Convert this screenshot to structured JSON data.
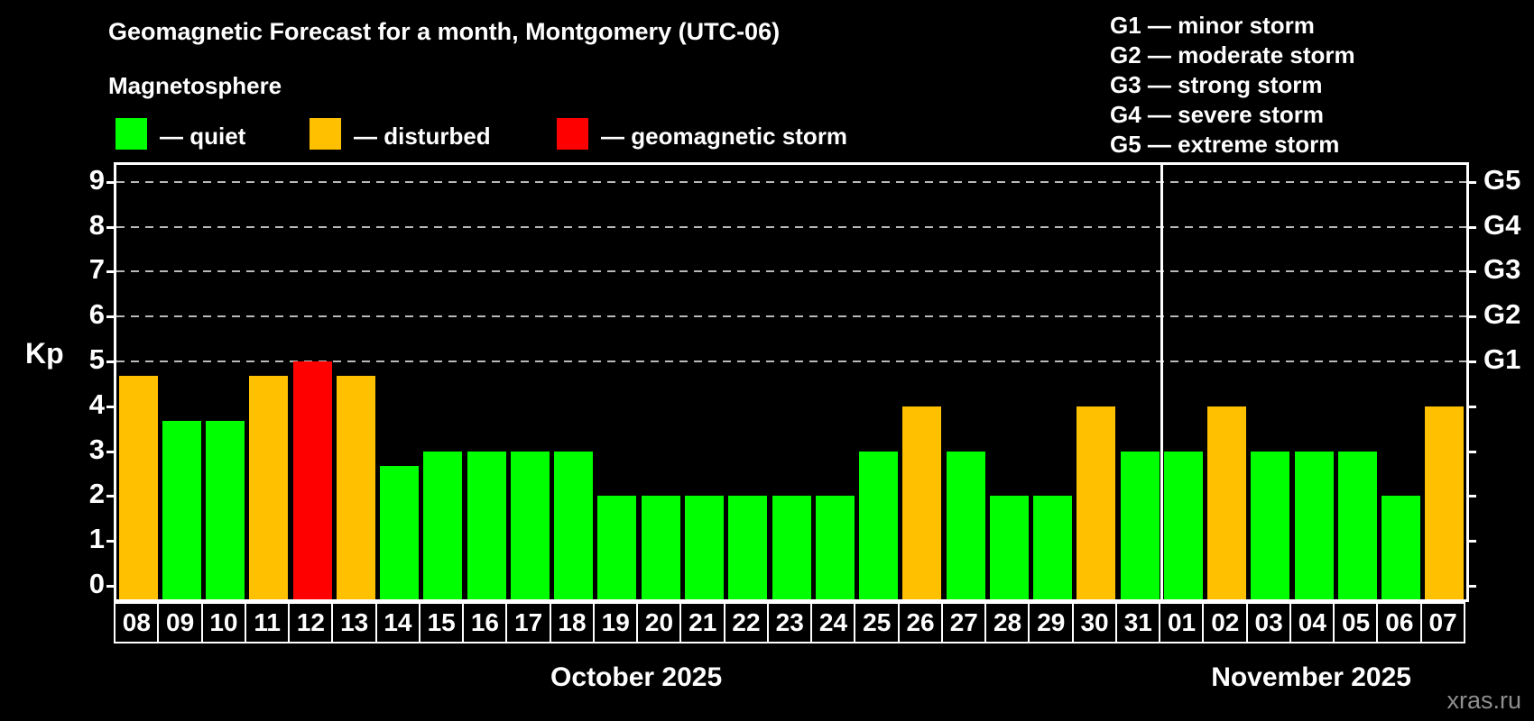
{
  "header": {
    "title": "Geomagnetic Forecast for a month, Montgomery (UTC-06)",
    "subtitle": "Magnetosphere",
    "watermark": "xras.ru"
  },
  "legend": {
    "items": [
      {
        "key": "quiet",
        "label": "— quiet",
        "color": "#00ff00"
      },
      {
        "key": "disturbed",
        "label": "— disturbed",
        "color": "#ffc000"
      },
      {
        "key": "storm",
        "label": "— geomagnetic storm",
        "color": "#ff0000"
      }
    ]
  },
  "storm_scale_legend": {
    "items": [
      "G1 — minor storm",
      "G2 — moderate storm",
      "G3 — strong storm",
      "G4 — severe storm",
      "G5 — extreme storm"
    ]
  },
  "chart_data": {
    "type": "bar",
    "title": "Geomagnetic Forecast for a month, Montgomery (UTC-06)",
    "subtitle": "Magnetosphere",
    "ylabel": "Kp",
    "ylim": [
      0,
      9
    ],
    "yticks": [
      0,
      1,
      2,
      3,
      4,
      5,
      6,
      7,
      8,
      9
    ],
    "gridlines_at_kp": [
      5,
      6,
      7,
      8,
      9
    ],
    "grid_style": "dashed",
    "right_axis_labels": [
      {
        "kp": 5,
        "label": "G1"
      },
      {
        "kp": 6,
        "label": "G2"
      },
      {
        "kp": 7,
        "label": "G3"
      },
      {
        "kp": 8,
        "label": "G4"
      },
      {
        "kp": 9,
        "label": "G5"
      }
    ],
    "status_colors": {
      "quiet": "#00ff00",
      "disturbed": "#ffc000",
      "storm": "#ff0000"
    },
    "months": [
      {
        "label": "October 2025",
        "bars": [
          {
            "day": "08",
            "kp": 4.67,
            "status": "disturbed"
          },
          {
            "day": "09",
            "kp": 3.67,
            "status": "quiet"
          },
          {
            "day": "10",
            "kp": 3.67,
            "status": "quiet"
          },
          {
            "day": "11",
            "kp": 4.67,
            "status": "disturbed"
          },
          {
            "day": "12",
            "kp": 5.0,
            "status": "storm"
          },
          {
            "day": "13",
            "kp": 4.67,
            "status": "disturbed"
          },
          {
            "day": "14",
            "kp": 2.67,
            "status": "quiet"
          },
          {
            "day": "15",
            "kp": 3.0,
            "status": "quiet"
          },
          {
            "day": "16",
            "kp": 3.0,
            "status": "quiet"
          },
          {
            "day": "17",
            "kp": 3.0,
            "status": "quiet"
          },
          {
            "day": "18",
            "kp": 3.0,
            "status": "quiet"
          },
          {
            "day": "19",
            "kp": 2.0,
            "status": "quiet"
          },
          {
            "day": "20",
            "kp": 2.0,
            "status": "quiet"
          },
          {
            "day": "21",
            "kp": 2.0,
            "status": "quiet"
          },
          {
            "day": "22",
            "kp": 2.0,
            "status": "quiet"
          },
          {
            "day": "23",
            "kp": 2.0,
            "status": "quiet"
          },
          {
            "day": "24",
            "kp": 2.0,
            "status": "quiet"
          },
          {
            "day": "25",
            "kp": 3.0,
            "status": "quiet"
          },
          {
            "day": "26",
            "kp": 4.0,
            "status": "disturbed"
          },
          {
            "day": "27",
            "kp": 3.0,
            "status": "quiet"
          },
          {
            "day": "28",
            "kp": 2.0,
            "status": "quiet"
          },
          {
            "day": "29",
            "kp": 2.0,
            "status": "quiet"
          },
          {
            "day": "30",
            "kp": 4.0,
            "status": "disturbed"
          },
          {
            "day": "31",
            "kp": 3.0,
            "status": "quiet"
          }
        ]
      },
      {
        "label": "November 2025",
        "bars": [
          {
            "day": "01",
            "kp": 3.0,
            "status": "quiet"
          },
          {
            "day": "02",
            "kp": 4.0,
            "status": "disturbed"
          },
          {
            "day": "03",
            "kp": 3.0,
            "status": "quiet"
          },
          {
            "day": "04",
            "kp": 3.0,
            "status": "quiet"
          },
          {
            "day": "05",
            "kp": 3.0,
            "status": "quiet"
          },
          {
            "day": "06",
            "kp": 2.0,
            "status": "quiet"
          },
          {
            "day": "07",
            "kp": 4.0,
            "status": "disturbed"
          }
        ]
      }
    ]
  }
}
